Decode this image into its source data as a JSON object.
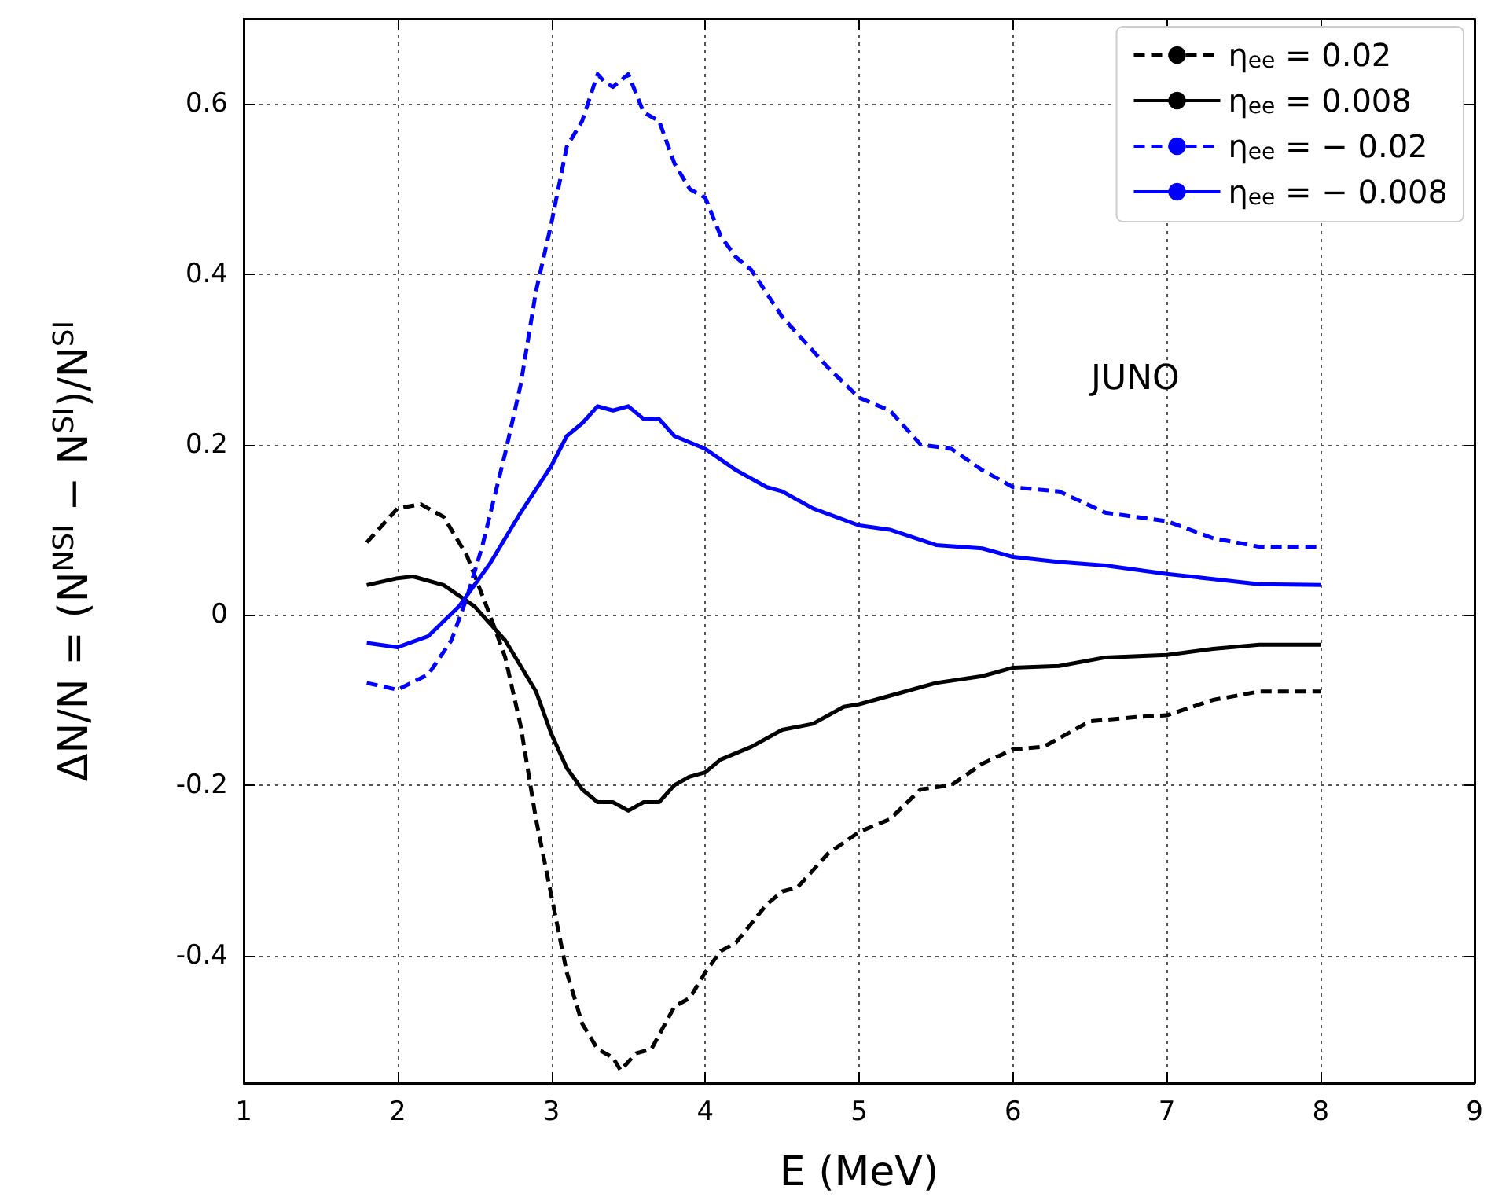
{
  "chart_data": {
    "type": "line",
    "xlabel": "E (MeV)",
    "ylabel": "ΔN/N = (N$^{NSI}$ − N$^{SI}$)/N$^{SI}$",
    "annotations": [
      "JUNO"
    ],
    "xlim": [
      1,
      9
    ],
    "xticks": [
      1,
      2,
      3,
      4,
      5,
      6,
      7,
      8,
      9
    ],
    "ylim": [
      -0.55,
      0.7
    ],
    "yticks": [
      -0.4,
      -0.2,
      0,
      0.2,
      0.4,
      0.6
    ],
    "grid": true,
    "legend": "top right",
    "marker": "none",
    "series": [
      {
        "name": "η$_{ee}$ = 0.02",
        "color": "#000000",
        "line_style": "dashed",
        "x": [
          1.8,
          2.0,
          2.15,
          2.3,
          2.45,
          2.6,
          2.7,
          2.8,
          2.9,
          3.0,
          3.1,
          3.2,
          3.3,
          3.4,
          3.45,
          3.55,
          3.65,
          3.8,
          3.9,
          4.0,
          4.1,
          4.2,
          4.4,
          4.5,
          4.6,
          4.8,
          5.0,
          5.2,
          5.4,
          5.6,
          5.8,
          6.0,
          6.2,
          6.5,
          6.8,
          7.0,
          7.3,
          7.6,
          8.0
        ],
        "values": [
          0.085,
          0.125,
          0.13,
          0.115,
          0.07,
          0.0,
          -0.05,
          -0.13,
          -0.24,
          -0.33,
          -0.42,
          -0.48,
          -0.51,
          -0.52,
          -0.535,
          -0.515,
          -0.51,
          -0.46,
          -0.45,
          -0.42,
          -0.395,
          -0.385,
          -0.34,
          -0.325,
          -0.32,
          -0.28,
          -0.255,
          -0.24,
          -0.205,
          -0.2,
          -0.175,
          -0.158,
          -0.155,
          -0.125,
          -0.12,
          -0.118,
          -0.1,
          -0.09,
          -0.09
        ]
      },
      {
        "name": "η$_{ee}$ = 0.008",
        "color": "#000000",
        "line_style": "solid",
        "x": [
          1.8,
          2.0,
          2.1,
          2.3,
          2.5,
          2.7,
          2.9,
          3.0,
          3.1,
          3.2,
          3.3,
          3.4,
          3.5,
          3.6,
          3.7,
          3.8,
          3.9,
          4.0,
          4.1,
          4.3,
          4.5,
          4.7,
          4.9,
          5.0,
          5.3,
          5.5,
          5.8,
          6.0,
          6.3,
          6.6,
          7.0,
          7.3,
          7.6,
          8.0
        ],
        "values": [
          0.035,
          0.043,
          0.045,
          0.035,
          0.01,
          -0.03,
          -0.09,
          -0.14,
          -0.18,
          -0.205,
          -0.22,
          -0.22,
          -0.23,
          -0.22,
          -0.22,
          -0.2,
          -0.19,
          -0.185,
          -0.17,
          -0.155,
          -0.135,
          -0.128,
          -0.108,
          -0.105,
          -0.09,
          -0.08,
          -0.072,
          -0.062,
          -0.06,
          -0.05,
          -0.047,
          -0.04,
          -0.035,
          -0.035
        ]
      },
      {
        "name": "η$_{ee}$ = − 0.02",
        "color": "#0000ff",
        "line_style": "dashed",
        "x": [
          1.8,
          2.0,
          2.2,
          2.35,
          2.45,
          2.55,
          2.7,
          2.8,
          2.9,
          3.0,
          3.1,
          3.2,
          3.3,
          3.35,
          3.4,
          3.5,
          3.6,
          3.7,
          3.8,
          3.9,
          4.0,
          4.1,
          4.2,
          4.3,
          4.5,
          4.6,
          4.8,
          5.0,
          5.2,
          5.4,
          5.6,
          5.8,
          6.0,
          6.3,
          6.6,
          7.0,
          7.3,
          7.6,
          8.0
        ],
        "values": [
          -0.08,
          -0.088,
          -0.07,
          -0.03,
          0.02,
          0.08,
          0.19,
          0.27,
          0.38,
          0.46,
          0.55,
          0.58,
          0.635,
          0.625,
          0.62,
          0.635,
          0.59,
          0.58,
          0.53,
          0.5,
          0.49,
          0.445,
          0.42,
          0.405,
          0.35,
          0.33,
          0.29,
          0.255,
          0.24,
          0.2,
          0.195,
          0.17,
          0.15,
          0.145,
          0.12,
          0.11,
          0.09,
          0.08,
          0.08
        ]
      },
      {
        "name": "η$_{ee}$ = − 0.008",
        "color": "#0000ff",
        "line_style": "solid",
        "x": [
          1.8,
          2.0,
          2.2,
          2.4,
          2.6,
          2.8,
          3.0,
          3.1,
          3.2,
          3.3,
          3.4,
          3.5,
          3.6,
          3.7,
          3.8,
          4.0,
          4.2,
          4.4,
          4.5,
          4.7,
          5.0,
          5.2,
          5.5,
          5.8,
          6.0,
          6.3,
          6.6,
          7.0,
          7.3,
          7.6,
          8.0
        ],
        "values": [
          -0.033,
          -0.038,
          -0.025,
          0.01,
          0.06,
          0.12,
          0.175,
          0.21,
          0.225,
          0.245,
          0.24,
          0.245,
          0.23,
          0.23,
          0.21,
          0.195,
          0.17,
          0.15,
          0.145,
          0.125,
          0.105,
          0.1,
          0.082,
          0.078,
          0.068,
          0.062,
          0.058,
          0.048,
          0.042,
          0.036,
          0.035
        ]
      }
    ]
  }
}
